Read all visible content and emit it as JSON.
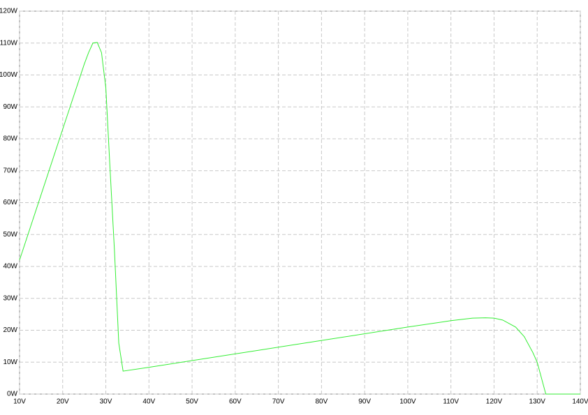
{
  "chart_data": {
    "type": "line",
    "x": [
      10,
      15,
      20,
      25,
      26,
      27,
      28,
      29,
      30,
      31,
      32,
      33,
      34,
      40,
      60,
      80,
      100,
      110,
      115,
      118,
      120,
      122,
      125,
      127,
      129,
      130,
      131,
      132,
      135,
      140
    ],
    "series": [
      {
        "color": "#33ee33",
        "values": [
          42,
          62.5,
          83,
          103.4,
          107,
          110,
          110.2,
          107,
          96,
          70,
          45,
          16,
          7.2,
          8.4,
          12.6,
          16.8,
          21,
          23,
          23.8,
          23.9,
          23.8,
          23.2,
          21,
          18,
          13,
          10,
          5,
          0,
          0,
          0
        ]
      }
    ],
    "xlim": [
      10,
      140
    ],
    "xticks": [
      {
        "value": 10,
        "label": "10V"
      },
      {
        "value": 20,
        "label": "20V"
      },
      {
        "value": 30,
        "label": "30V"
      },
      {
        "value": 40,
        "label": "40V"
      },
      {
        "value": 50,
        "label": "50V"
      },
      {
        "value": 60,
        "label": "60V"
      },
      {
        "value": 70,
        "label": "70V"
      },
      {
        "value": 80,
        "label": "80V"
      },
      {
        "value": 90,
        "label": "90V"
      },
      {
        "value": 100,
        "label": "100V"
      },
      {
        "value": 110,
        "label": "110V"
      },
      {
        "value": 120,
        "label": "120V"
      },
      {
        "value": 130,
        "label": "130V"
      },
      {
        "value": 140,
        "label": "140V"
      }
    ],
    "ylim": [
      0,
      120
    ],
    "yticks": [
      {
        "value": 0,
        "label": "0W"
      },
      {
        "value": 10,
        "label": "10W"
      },
      {
        "value": 20,
        "label": "20W"
      },
      {
        "value": 30,
        "label": "30W"
      },
      {
        "value": 40,
        "label": "40W"
      },
      {
        "value": 50,
        "label": "50W"
      },
      {
        "value": 60,
        "label": "60W"
      },
      {
        "value": 70,
        "label": "70W"
      },
      {
        "value": 80,
        "label": "80W"
      },
      {
        "value": 90,
        "label": "90W"
      },
      {
        "value": 100,
        "label": "100W"
      },
      {
        "value": 110,
        "label": "110W"
      },
      {
        "value": 120,
        "label": "120W"
      }
    ],
    "grid": true
  }
}
